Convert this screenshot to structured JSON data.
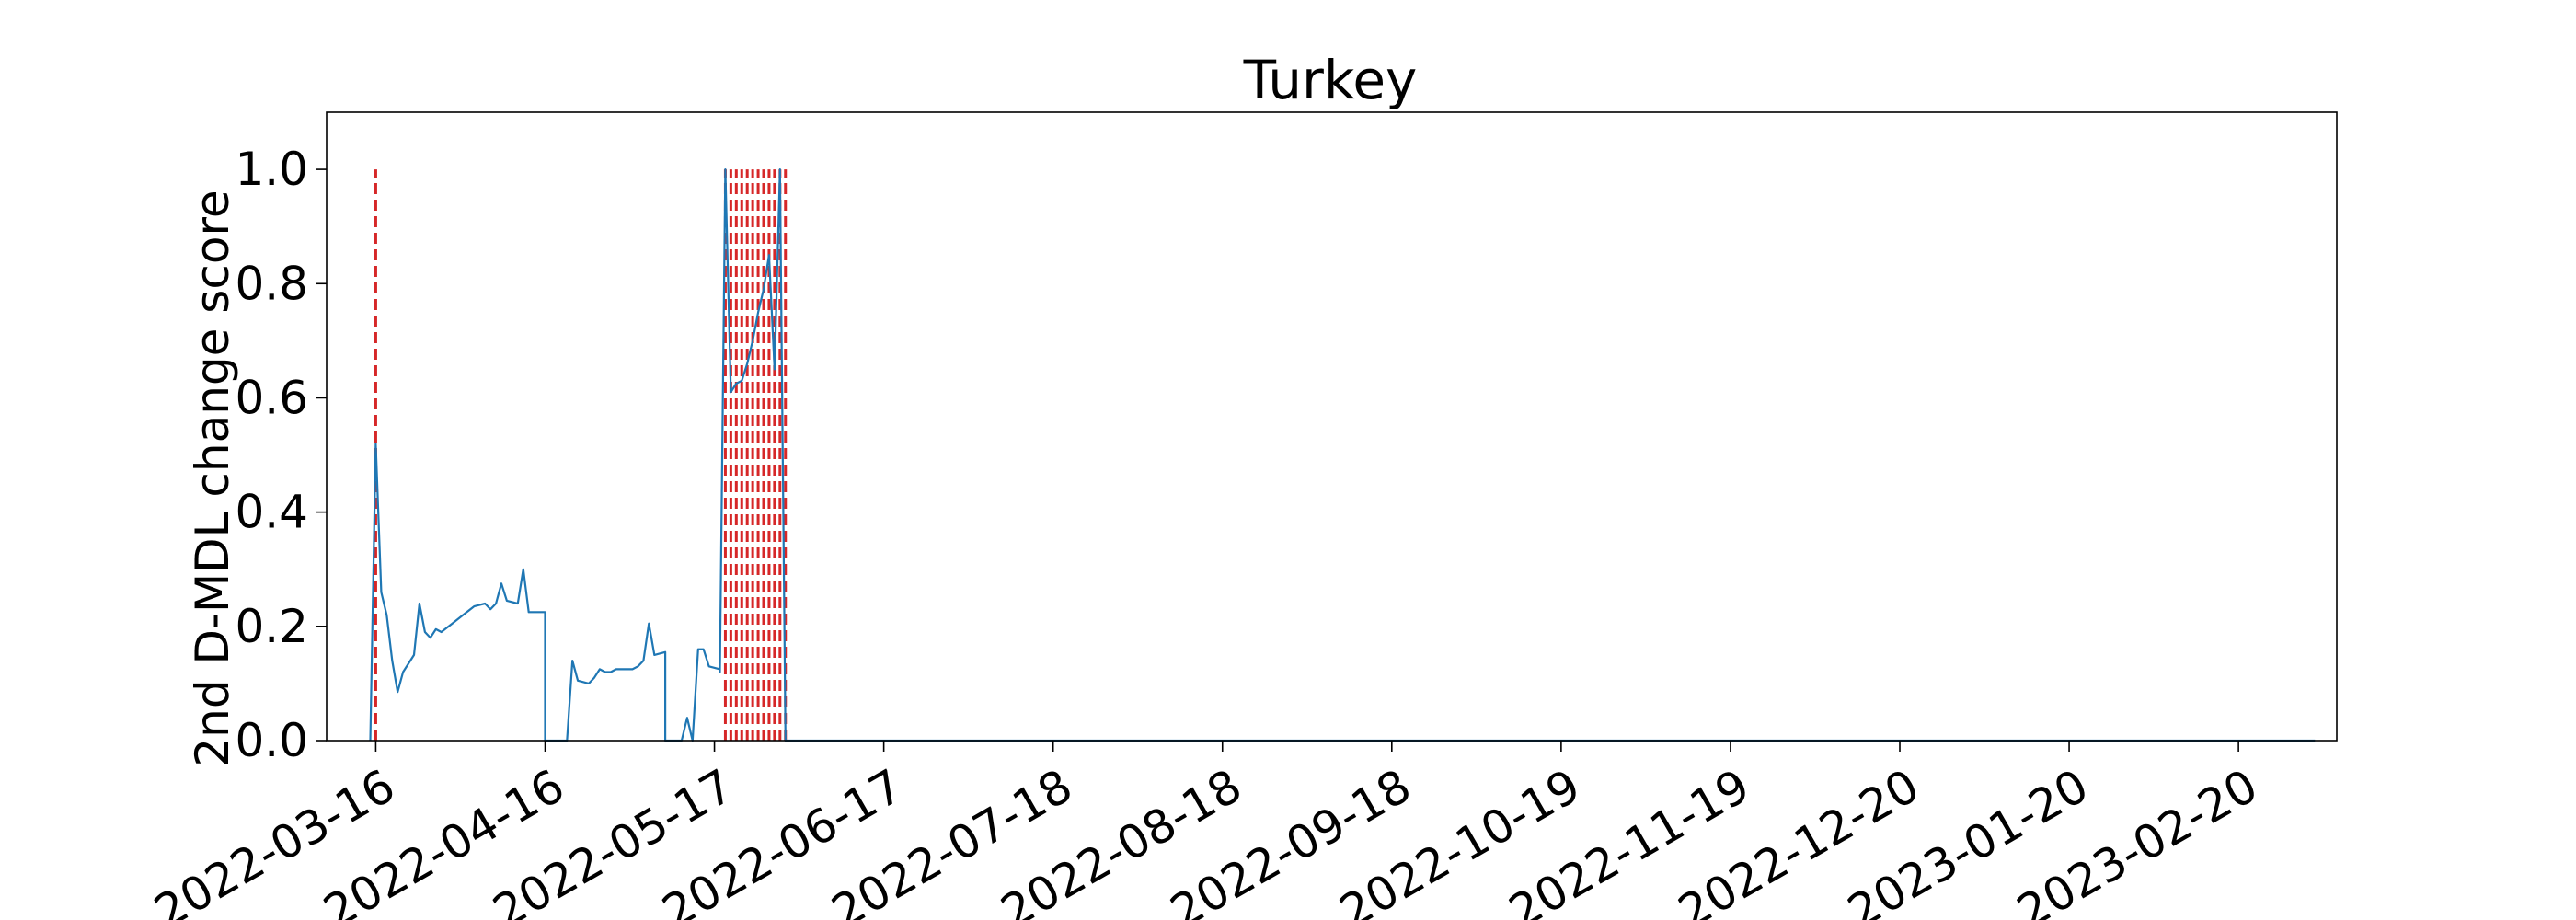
{
  "chart_data": {
    "type": "line",
    "title": "Turkey",
    "xlabel": "",
    "ylabel": "2nd D-MDL change score",
    "xlim": [
      "2022-03-07",
      "2023-03-10"
    ],
    "ylim": [
      0,
      1.1
    ],
    "x_ticks": [
      "2022-03-16",
      "2022-04-16",
      "2022-05-17",
      "2022-06-17",
      "2022-07-18",
      "2022-08-18",
      "2022-09-18",
      "2022-10-19",
      "2022-11-19",
      "2022-12-20",
      "2023-01-20",
      "2023-02-20"
    ],
    "y_ticks": [
      "0.0",
      "0.2",
      "0.4",
      "0.6",
      "0.8",
      "1.0"
    ],
    "grid": false,
    "series": [
      {
        "color": "#1f77b4",
        "points": [
          [
            "2022-03-15",
            0.0
          ],
          [
            "2022-03-16",
            0.52
          ],
          [
            "2022-03-17",
            0.26
          ],
          [
            "2022-03-18",
            0.22
          ],
          [
            "2022-03-19",
            0.14
          ],
          [
            "2022-03-20",
            0.085
          ],
          [
            "2022-03-21",
            0.12
          ],
          [
            "2022-03-23",
            0.15
          ],
          [
            "2022-03-24",
            0.24
          ],
          [
            "2022-03-25",
            0.19
          ],
          [
            "2022-03-26",
            0.18
          ],
          [
            "2022-03-27",
            0.195
          ],
          [
            "2022-03-28",
            0.19
          ],
          [
            "2022-03-30",
            0.205
          ],
          [
            "2022-04-01",
            0.22
          ],
          [
            "2022-04-03",
            0.235
          ],
          [
            "2022-04-05",
            0.24
          ],
          [
            "2022-04-06",
            0.23
          ],
          [
            "2022-04-07",
            0.24
          ],
          [
            "2022-04-08",
            0.275
          ],
          [
            "2022-04-09",
            0.245
          ],
          [
            "2022-04-11",
            0.24
          ],
          [
            "2022-04-12",
            0.3
          ],
          [
            "2022-04-13",
            0.225
          ],
          [
            "2022-04-16",
            0.225
          ],
          [
            "2022-04-16",
            0.22
          ],
          [
            "2022-04-16",
            0.0
          ],
          [
            "2022-04-20",
            0.0
          ],
          [
            "2022-04-21",
            0.14
          ],
          [
            "2022-04-22",
            0.105
          ],
          [
            "2022-04-24",
            0.1
          ],
          [
            "2022-04-25",
            0.11
          ],
          [
            "2022-04-26",
            0.125
          ],
          [
            "2022-04-27",
            0.12
          ],
          [
            "2022-04-28",
            0.12
          ],
          [
            "2022-04-29",
            0.125
          ],
          [
            "2022-05-02",
            0.125
          ],
          [
            "2022-05-03",
            0.13
          ],
          [
            "2022-05-04",
            0.14
          ],
          [
            "2022-05-05",
            0.205
          ],
          [
            "2022-05-06",
            0.15
          ],
          [
            "2022-05-08",
            0.155
          ],
          [
            "2022-05-08",
            0.0
          ],
          [
            "2022-05-11",
            0.0
          ],
          [
            "2022-05-12",
            0.04
          ],
          [
            "2022-05-13",
            0.0
          ],
          [
            "2022-05-14",
            0.16
          ],
          [
            "2022-05-15",
            0.16
          ],
          [
            "2022-05-16",
            0.13
          ],
          [
            "2022-05-18",
            0.125
          ],
          [
            "2022-05-18",
            0.12
          ],
          [
            "2022-05-19",
            1.0
          ],
          [
            "2022-05-20",
            0.61
          ],
          [
            "2022-05-21",
            0.625
          ],
          [
            "2022-05-22",
            0.63
          ],
          [
            "2022-05-23",
            0.66
          ],
          [
            "2022-05-24",
            0.7
          ],
          [
            "2022-05-25",
            0.75
          ],
          [
            "2022-05-26",
            0.79
          ],
          [
            "2022-05-27",
            0.85
          ],
          [
            "2022-05-28",
            0.65
          ],
          [
            "2022-05-29",
            1.0
          ],
          [
            "2022-05-30",
            0.0
          ],
          [
            "2022-06-05",
            0.0
          ],
          [
            "2023-03-06",
            0.0
          ]
        ]
      }
    ],
    "alarm_lines": {
      "color": "#d62728",
      "style": "dashed",
      "dates": [
        "2022-03-16",
        "2022-05-19",
        "2022-05-20",
        "2022-05-21",
        "2022-05-22",
        "2022-05-23",
        "2022-05-24",
        "2022-05-25",
        "2022-05-26",
        "2022-05-27",
        "2022-05-28",
        "2022-05-29",
        "2022-05-30"
      ]
    }
  }
}
